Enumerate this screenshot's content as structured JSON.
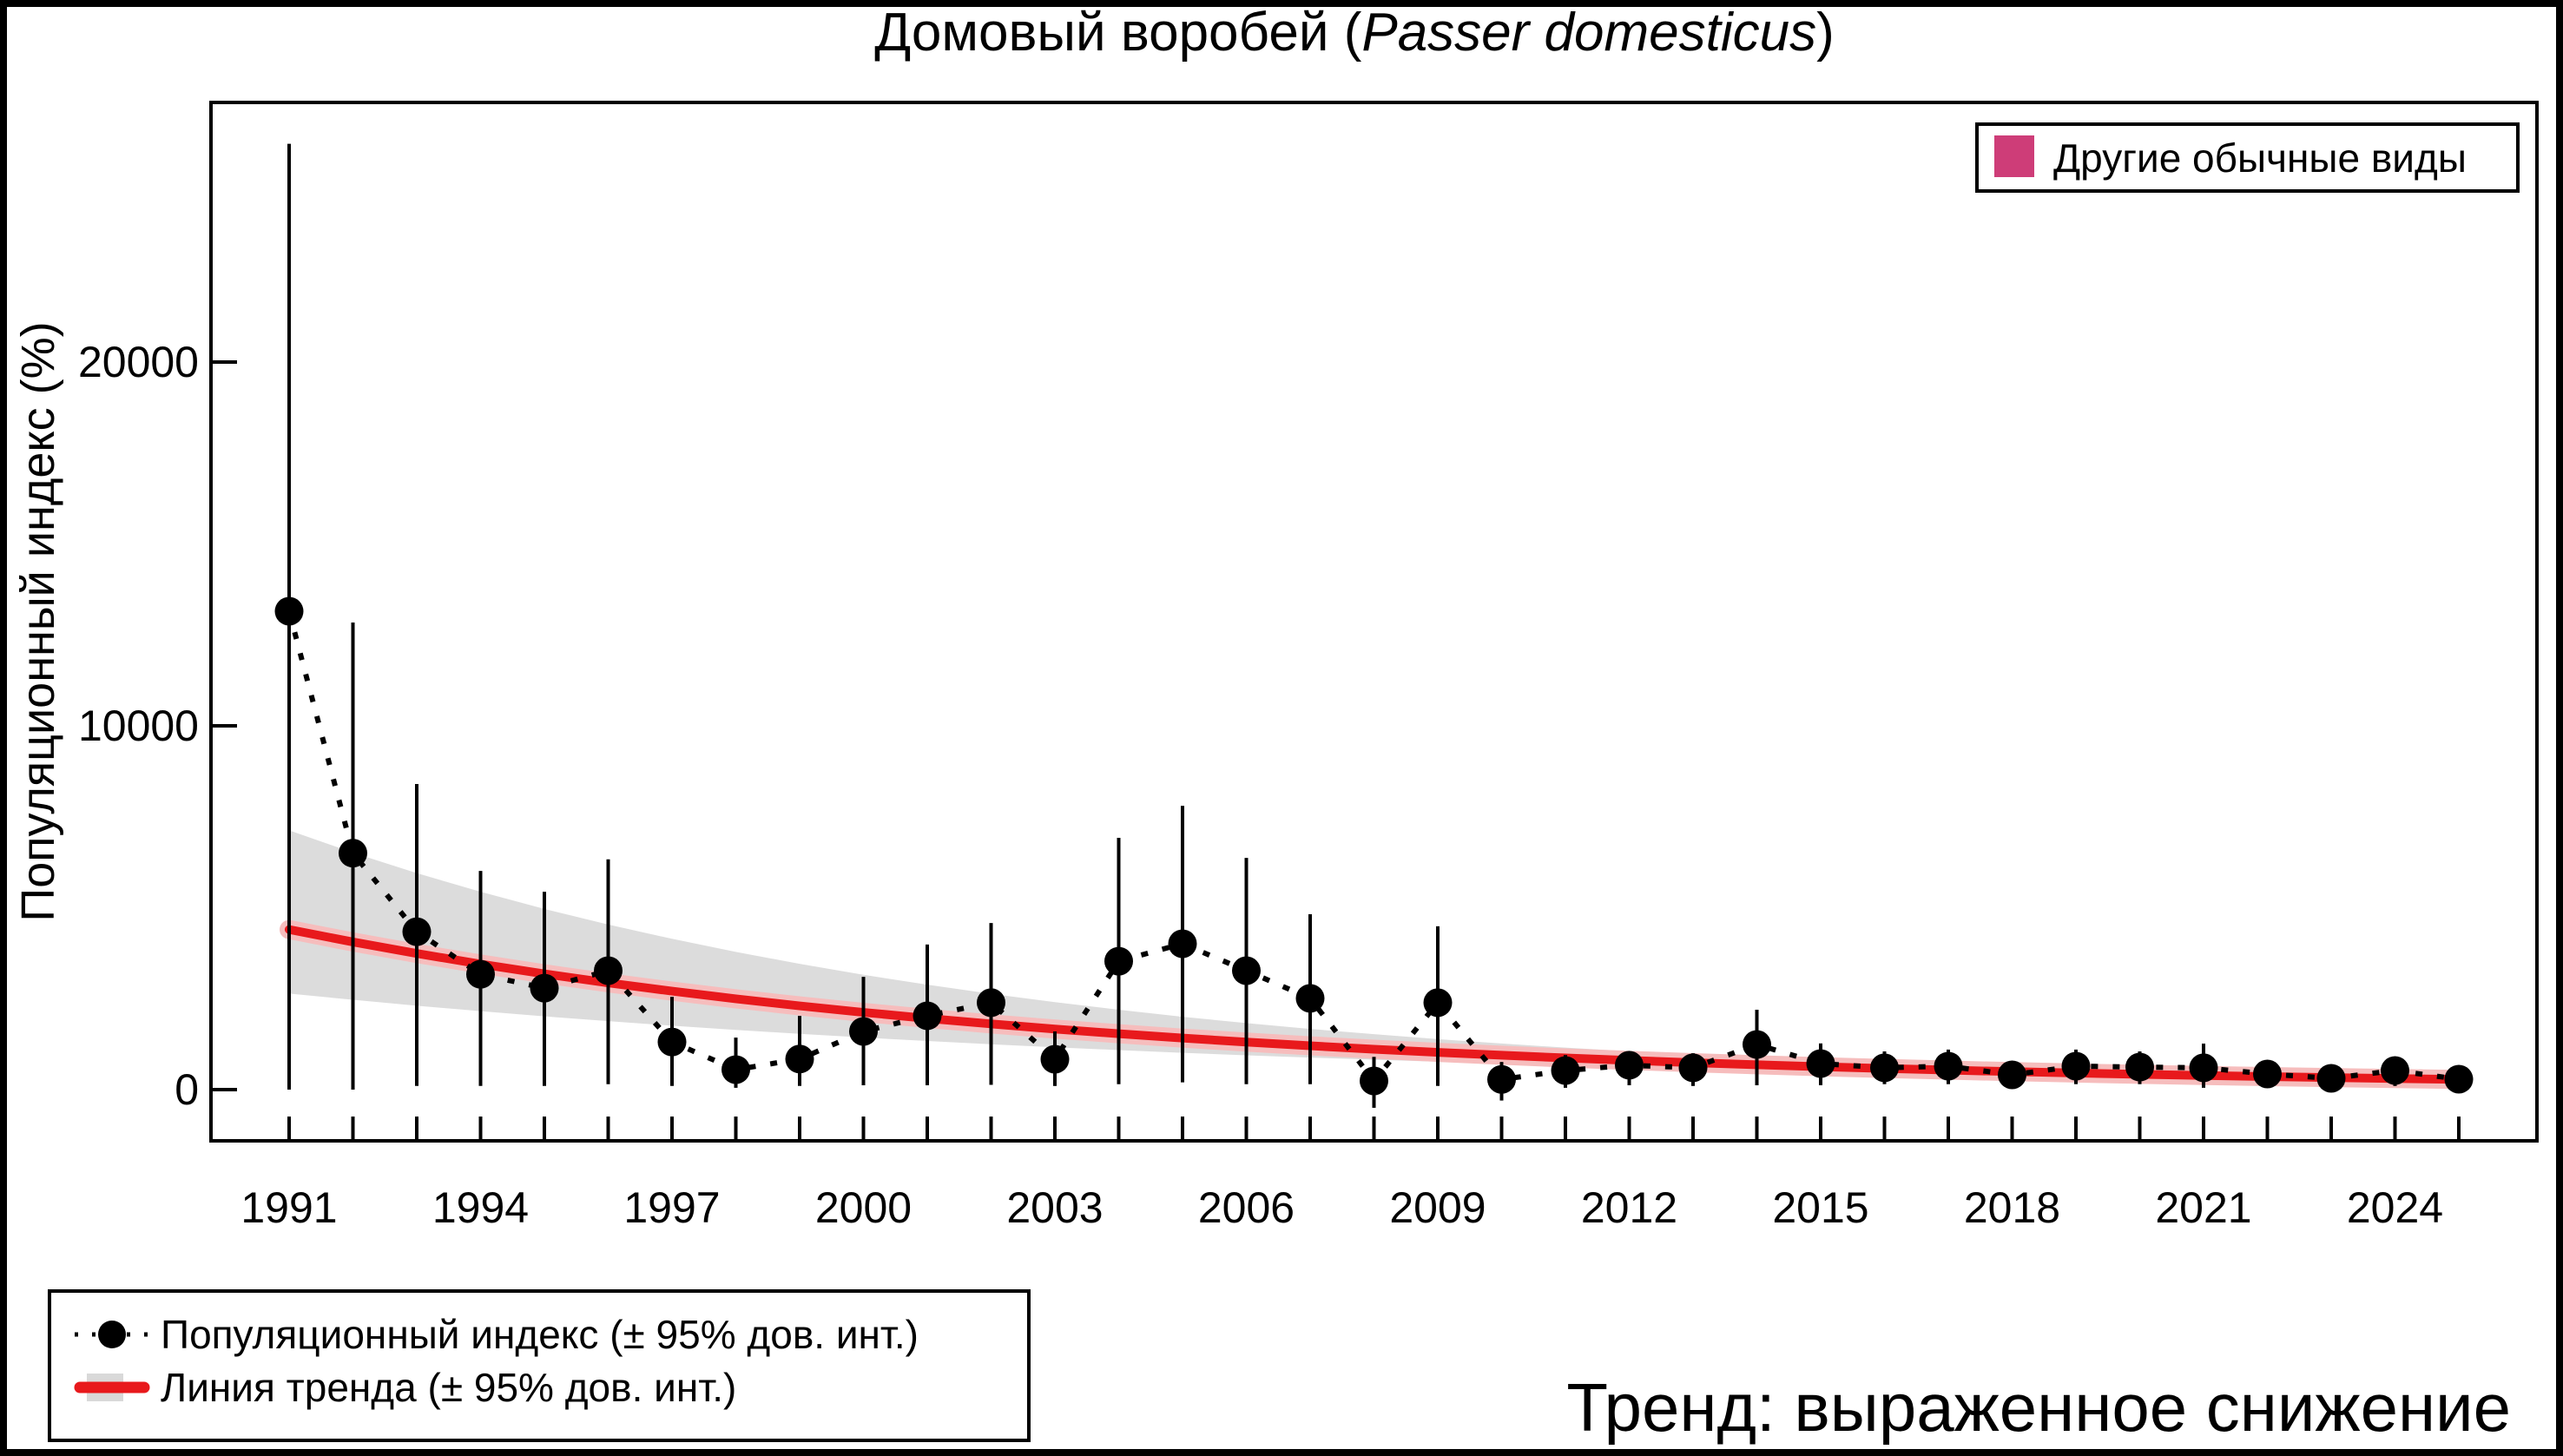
{
  "title": {
    "prefix": "Домовый воробей (",
    "species": "Passer domesticus",
    "suffix": ")"
  },
  "y_axis": {
    "label": "Популяционный индекс (%)",
    "ticks": [
      0,
      10000,
      20000
    ]
  },
  "x_axis": {
    "label_years": [
      1991,
      1994,
      1997,
      2000,
      2003,
      2006,
      2009,
      2012,
      2015,
      2018,
      2021,
      2024
    ]
  },
  "legend_top_right": {
    "label": "Другие обычные виды",
    "swatch_color": "#CE3D78"
  },
  "legend_bottom_left": {
    "row1": "Популяционный индекс (± 95% дов. инт.)",
    "row2": "Линия тренда (± 95% дов. инт.)"
  },
  "trend_caption": {
    "text": "Тренд: выраженное снижение",
    "color": "#CB0A0A"
  },
  "colors": {
    "trend_line": "#E8191C",
    "trend_halo": "#F6BDBD",
    "ci_band": "#DCDCDC",
    "points": "#000000",
    "legend_band_swatch": "#D9D9D9"
  },
  "chart_data": {
    "type": "line",
    "title": "Домовый воробей (Passer domesticus)",
    "xlabel": "",
    "ylabel": "Популяционный индекс (%)",
    "x": [
      1991,
      1992,
      1993,
      1994,
      1995,
      1996,
      1997,
      1998,
      1999,
      2000,
      2001,
      2002,
      2003,
      2004,
      2005,
      2006,
      2007,
      2008,
      2009,
      2010,
      2011,
      2012,
      2013,
      2014,
      2015,
      2016,
      2017,
      2018,
      2019,
      2020,
      2021,
      2022,
      2023,
      2024,
      2025
    ],
    "ylim": [
      -1400,
      27150
    ],
    "grid": false,
    "legend_position": "bottom-left",
    "series": [
      {
        "name": "Популяционный индекс (± 95% дов. инт.)",
        "style": "dotted-line-with-points-and-error-bars",
        "values": [
          13150,
          6500,
          4340,
          3170,
          2790,
          3270,
          1310,
          550,
          840,
          1600,
          2030,
          2390,
          835,
          3530,
          4010,
          3270,
          2510,
          240,
          2390,
          280,
          525,
          670,
          600,
          1240,
          716,
          600,
          645,
          406,
          645,
          620,
          600,
          430,
          310,
          525,
          286
        ],
        "ci_low": [
          0,
          0,
          100,
          100,
          100,
          150,
          100,
          50,
          100,
          120,
          120,
          130,
          100,
          150,
          200,
          150,
          150,
          -500,
          100,
          -300,
          50,
          120,
          100,
          120,
          120,
          150,
          150,
          100,
          150,
          150,
          50,
          50,
          50,
          100,
          30
        ],
        "ci_high": [
          26000,
          12840,
          8400,
          6010,
          5440,
          6330,
          2550,
          1430,
          2030,
          3100,
          3990,
          4580,
          1600,
          6920,
          7800,
          6370,
          4820,
          900,
          4490,
          760,
          950,
          1030,
          1000,
          2195,
          1270,
          1050,
          1100,
          700,
          1100,
          1050,
          1265,
          800,
          600,
          900,
          550
        ]
      },
      {
        "name": "Линия тренда (± 95% дов. инт.)",
        "style": "thick-red-line-with-ci-band",
        "values": [
          4400,
          4058,
          3742,
          3451,
          3183,
          2935,
          2707,
          2496,
          2302,
          2123,
          1958,
          1806,
          1665,
          1536,
          1416,
          1306,
          1204,
          1111,
          1024,
          945,
          871,
          803,
          741,
          683,
          630,
          581,
          536,
          494,
          456,
          420,
          388,
          358,
          330,
          304,
          280
        ],
        "ci_low": [
          2640,
          2469,
          2307,
          2156,
          2014,
          1881,
          1757,
          1641,
          1533,
          1431,
          1336,
          1247,
          1163,
          1086,
          1012,
          944,
          881,
          822,
          766,
          715,
          666,
          620,
          578,
          539,
          502,
          468,
          436,
          406,
          378,
          352,
          328,
          305,
          285,
          264,
          246
        ],
        "ci_high": [
          7128,
          6513,
          5951,
          5438,
          4967,
          4539,
          4146,
          3785,
          3458,
          3157,
          2884,
          2634,
          2404,
          2196,
          2003,
          1828,
          1668,
          1523,
          1388,
          1267,
          1155,
          1053,
          961,
          876,
          799,
          728,
          664,
          605,
          551,
          502,
          458,
          417,
          380,
          345,
          314
        ]
      }
    ],
    "trend_classification": "выраженное снижение"
  }
}
